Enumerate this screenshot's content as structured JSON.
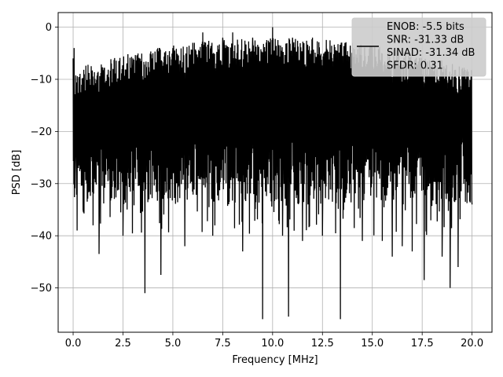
{
  "chart_data": {
    "type": "line",
    "title": "",
    "xlabel": "Frequency [MHz]",
    "ylabel": "PSD [dB]",
    "xlim": [
      -0.75,
      21.0
    ],
    "ylim": [
      -58.5,
      2.8
    ],
    "xticks": [
      0.0,
      2.5,
      5.0,
      7.5,
      10.0,
      12.5,
      15.0,
      17.5,
      20.0
    ],
    "xtick_labels": [
      "0.0",
      "2.5",
      "5.0",
      "7.5",
      "10.0",
      "12.5",
      "15.0",
      "17.5",
      "20.0"
    ],
    "yticks": [
      0,
      -10,
      -20,
      -30,
      -40,
      -50
    ],
    "ytick_labels": [
      "0",
      "−10",
      "−20",
      "−30",
      "−40",
      "−50"
    ],
    "grid": true,
    "legend_position": "top-right",
    "series_color": "#000000",
    "legend_entries": [
      "ENOB: -5.5 bits",
      "SNR: -31.33 dB",
      "SINAD: -31.34 dB",
      "SFDR: 0.31"
    ],
    "series": [
      {
        "x_range": [
          0.0,
          20.0
        ],
        "description_points": [
          [
            0.0,
            -6
          ],
          [
            0.05,
            -4
          ],
          [
            0.1,
            -28
          ],
          [
            0.2,
            -39
          ],
          [
            0.5,
            -35
          ],
          [
            1.0,
            -38
          ],
          [
            1.3,
            -43.5
          ],
          [
            2.0,
            -8
          ],
          [
            2.5,
            -40
          ],
          [
            3.0,
            -6
          ],
          [
            3.6,
            -51
          ],
          [
            4.0,
            -5
          ],
          [
            4.4,
            -47.5
          ],
          [
            5.0,
            -4
          ],
          [
            5.6,
            -42
          ],
          [
            6.0,
            -3
          ],
          [
            6.5,
            -1
          ],
          [
            7.0,
            -40
          ],
          [
            7.5,
            -2
          ],
          [
            8.0,
            -1
          ],
          [
            8.5,
            -43
          ],
          [
            9.0,
            -2
          ],
          [
            9.5,
            -56
          ],
          [
            10.0,
            0
          ],
          [
            10.5,
            -40
          ],
          [
            10.8,
            -55.5
          ],
          [
            11.0,
            -2
          ],
          [
            11.5,
            -41
          ],
          [
            12.0,
            -2
          ],
          [
            12.5,
            -40
          ],
          [
            13.4,
            -56
          ],
          [
            14.0,
            -3
          ],
          [
            14.5,
            -41
          ],
          [
            15.0,
            -4
          ],
          [
            15.5,
            -41
          ],
          [
            16.0,
            -44
          ],
          [
            16.5,
            -42
          ],
          [
            17.0,
            -43
          ],
          [
            17.6,
            -48.5
          ],
          [
            18.0,
            -8
          ],
          [
            18.5,
            -44
          ],
          [
            18.9,
            -50
          ],
          [
            19.3,
            -46
          ],
          [
            19.5,
            -9
          ],
          [
            20.0,
            -34
          ]
        ]
      }
    ]
  }
}
